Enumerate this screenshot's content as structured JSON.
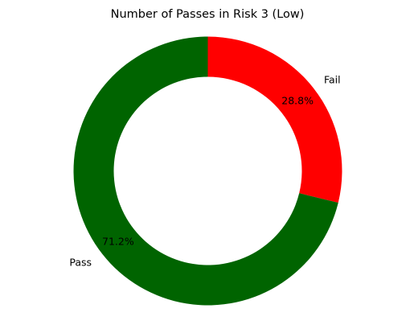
{
  "chart_data": {
    "type": "pie",
    "style": "donut",
    "title": "Number of Passes in Risk 3 (Low)",
    "start_angle_degrees": 90,
    "direction": "clockwise",
    "slices": [
      {
        "label": "Fail",
        "percent_label": "28.8%",
        "value": 28.8,
        "color": "#ff0000"
      },
      {
        "label": "Pass",
        "percent_label": "71.2%",
        "value": 71.2,
        "color": "#006400"
      }
    ]
  }
}
